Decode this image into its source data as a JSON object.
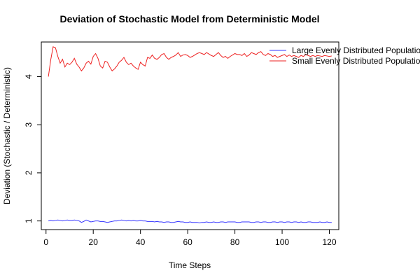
{
  "chart_data": {
    "type": "line",
    "title": "Deviation of Stochastic Model from Deterministic Model",
    "xlabel": "Time Steps",
    "ylabel": "Deviation (Stochastic / Deterministic)",
    "xlim": [
      -2,
      124
    ],
    "ylim": [
      0.82,
      4.72
    ],
    "x_ticks": [
      0,
      20,
      40,
      60,
      80,
      100,
      120
    ],
    "y_ticks": [
      1,
      2,
      3,
      4
    ],
    "x_tick_labels": [
      "0",
      "20",
      "40",
      "60",
      "80",
      "100",
      "120"
    ],
    "y_tick_labels": [
      "1",
      "2",
      "3",
      "4"
    ],
    "grid": false,
    "legend_position": "top-right",
    "series": [
      {
        "name": "Large Evenly Distributed Population",
        "color": "#3333ff",
        "x_start": 1,
        "x_step": 1,
        "values": [
          1.0,
          1.01,
          1.0,
          1.01,
          1.02,
          1.01,
          1.0,
          1.01,
          1.02,
          1.01,
          1.01,
          1.02,
          1.01,
          1.0,
          0.97,
          0.99,
          1.02,
          1.0,
          0.98,
          0.99,
          1.0,
          1.0,
          0.99,
          0.99,
          0.98,
          0.97,
          0.98,
          0.99,
          1.0,
          1.0,
          1.01,
          1.02,
          1.01,
          1.0,
          1.01,
          1.0,
          1.01,
          1.0,
          1.0,
          1.01,
          1.0,
          1.0,
          0.99,
          0.99,
          0.99,
          0.98,
          0.99,
          0.98,
          0.98,
          0.97,
          0.98,
          0.98,
          0.97,
          0.97,
          0.98,
          0.99,
          0.98,
          0.98,
          0.97,
          0.97,
          0.98,
          0.97,
          0.97,
          0.97,
          0.96,
          0.97,
          0.97,
          0.98,
          0.97,
          0.97,
          0.98,
          0.97,
          0.97,
          0.98,
          0.98,
          0.97,
          0.98,
          0.98,
          0.98,
          0.98,
          0.97,
          0.97,
          0.98,
          0.98,
          0.98,
          0.98,
          0.97,
          0.97,
          0.98,
          0.98,
          0.97,
          0.98,
          0.98,
          0.97,
          0.97,
          0.98,
          0.98,
          0.97,
          0.98,
          0.98,
          0.97,
          0.98,
          0.98,
          0.97,
          0.98,
          0.98,
          0.97,
          0.98,
          0.97,
          0.97,
          0.98,
          0.98,
          0.97,
          0.97,
          0.97,
          0.98,
          0.97,
          0.97,
          0.98,
          0.97,
          0.97
        ]
      },
      {
        "name": "Small Evenly Distributed Population",
        "color": "#ee2222",
        "x_start": 1,
        "x_step": 1,
        "values": [
          4.0,
          4.35,
          4.62,
          4.6,
          4.42,
          4.28,
          4.36,
          4.2,
          4.28,
          4.25,
          4.3,
          4.38,
          4.26,
          4.2,
          4.12,
          4.18,
          4.28,
          4.32,
          4.26,
          4.42,
          4.48,
          4.38,
          4.22,
          4.18,
          4.32,
          4.3,
          4.2,
          4.12,
          4.16,
          4.22,
          4.3,
          4.34,
          4.4,
          4.3,
          4.25,
          4.28,
          4.22,
          4.18,
          4.15,
          4.3,
          4.25,
          4.22,
          4.4,
          4.38,
          4.45,
          4.38,
          4.36,
          4.4,
          4.46,
          4.48,
          4.4,
          4.36,
          4.4,
          4.42,
          4.45,
          4.5,
          4.42,
          4.45,
          4.46,
          4.44,
          4.4,
          4.42,
          4.45,
          4.48,
          4.5,
          4.48,
          4.46,
          4.5,
          4.47,
          4.44,
          4.42,
          4.46,
          4.5,
          4.44,
          4.4,
          4.42,
          4.38,
          4.42,
          4.45,
          4.48,
          4.46,
          4.46,
          4.44,
          4.48,
          4.42,
          4.45,
          4.5,
          4.48,
          4.46,
          4.5,
          4.52,
          4.46,
          4.44,
          4.48,
          4.46,
          4.42,
          4.44,
          4.4,
          4.42,
          4.44,
          4.46,
          4.42,
          4.45,
          4.42,
          4.44,
          4.42,
          4.4,
          4.44,
          4.42,
          4.46,
          4.44,
          4.42,
          4.44,
          4.42,
          4.44,
          4.43,
          4.42,
          4.44,
          4.43,
          4.42,
          4.43
        ]
      }
    ]
  }
}
